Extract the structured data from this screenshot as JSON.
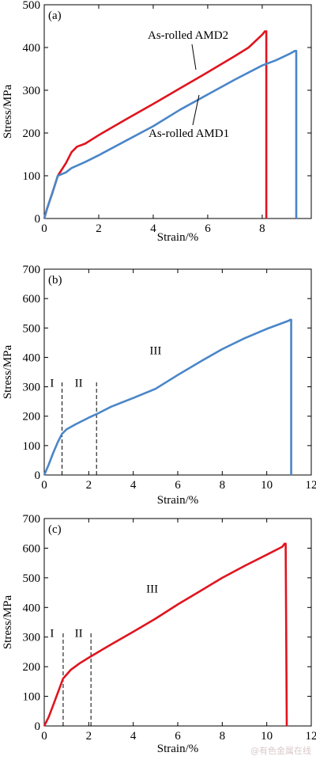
{
  "chart_data": [
    {
      "type": "line",
      "panel_label": "(a)",
      "xlabel": "Strain/%",
      "ylabel": "Stress/MPa",
      "xlim": [
        0,
        9.8
      ],
      "ylim": [
        0,
        500
      ],
      "xticks": [
        0,
        2,
        4,
        6,
        8
      ],
      "yticks": [
        0,
        100,
        200,
        300,
        400,
        500
      ],
      "series": [
        {
          "name": "As-rolled AMD2",
          "color": "#e0141e",
          "points": [
            [
              0,
              0
            ],
            [
              0.1,
              22
            ],
            [
              0.3,
              60
            ],
            [
              0.5,
              100
            ],
            [
              0.8,
              130
            ],
            [
              1.0,
              155
            ],
            [
              1.2,
              168
            ],
            [
              1.5,
              175
            ],
            [
              2,
              195
            ],
            [
              3,
              232
            ],
            [
              4,
              268
            ],
            [
              5,
              305
            ],
            [
              6,
              342
            ],
            [
              7,
              380
            ],
            [
              7.5,
              400
            ],
            [
              8.0,
              430
            ],
            [
              8.1,
              438
            ],
            [
              8.15,
              438
            ],
            [
              8.15,
              0
            ]
          ]
        },
        {
          "name": "As-rolled AMD1",
          "color": "#4a86c8",
          "points": [
            [
              0,
              0
            ],
            [
              0.1,
              22
            ],
            [
              0.3,
              60
            ],
            [
              0.5,
              100
            ],
            [
              0.8,
              108
            ],
            [
              1.0,
              118
            ],
            [
              1.5,
              132
            ],
            [
              2,
              148
            ],
            [
              3,
              182
            ],
            [
              4,
              216
            ],
            [
              5,
              255
            ],
            [
              6,
              290
            ],
            [
              7,
              325
            ],
            [
              8,
              358
            ],
            [
              8.5,
              370
            ],
            [
              9.0,
              385
            ],
            [
              9.2,
              392
            ],
            [
              9.25,
              392
            ],
            [
              9.25,
              0
            ]
          ]
        }
      ]
    },
    {
      "type": "line",
      "panel_label": "(b)",
      "xlabel": "Strain/%",
      "ylabel": "Stress/MPa",
      "xlim": [
        0,
        12
      ],
      "ylim": [
        0,
        700
      ],
      "xticks": [
        0,
        2,
        4,
        6,
        8,
        10,
        12
      ],
      "yticks": [
        0,
        100,
        200,
        300,
        400,
        500,
        600,
        700
      ],
      "stage_lines": [
        0.8,
        2.35
      ],
      "stage_labels": [
        {
          "text": "I",
          "x": 0.35,
          "y": 300
        },
        {
          "text": "II",
          "x": 1.55,
          "y": 300
        },
        {
          "text": "III",
          "x": 5.0,
          "y": 410
        }
      ],
      "series": [
        {
          "name": "",
          "color": "#4a86c8",
          "points": [
            [
              0,
              0
            ],
            [
              0.2,
              35
            ],
            [
              0.4,
              75
            ],
            [
              0.6,
              110
            ],
            [
              0.8,
              140
            ],
            [
              1.0,
              155
            ],
            [
              1.4,
              172
            ],
            [
              2.0,
              195
            ],
            [
              2.35,
              207
            ],
            [
              3,
              232
            ],
            [
              4,
              262
            ],
            [
              5,
              293
            ],
            [
              6,
              340
            ],
            [
              7,
              385
            ],
            [
              8,
              428
            ],
            [
              9,
              465
            ],
            [
              10,
              497
            ],
            [
              11,
              525
            ],
            [
              11.05,
              528
            ],
            [
              11.1,
              528
            ],
            [
              11.1,
              0
            ]
          ]
        }
      ]
    },
    {
      "type": "line",
      "panel_label": "(c)",
      "xlabel": "Strain/%",
      "ylabel": "Stress/MPa",
      "xlim": [
        0,
        12
      ],
      "ylim": [
        0,
        700
      ],
      "xticks": [
        0,
        2,
        4,
        6,
        8,
        10,
        12
      ],
      "yticks": [
        0,
        100,
        200,
        300,
        400,
        500,
        600,
        700
      ],
      "stage_lines": [
        0.85,
        2.1
      ],
      "stage_labels": [
        {
          "text": "I",
          "x": 0.35,
          "y": 300
        },
        {
          "text": "II",
          "x": 1.55,
          "y": 300
        },
        {
          "text": "III",
          "x": 4.85,
          "y": 450
        }
      ],
      "series": [
        {
          "name": "",
          "color": "#e0141e",
          "points": [
            [
              0,
              0
            ],
            [
              0.2,
              30
            ],
            [
              0.4,
              70
            ],
            [
              0.6,
              110
            ],
            [
              0.85,
              160
            ],
            [
              1.2,
              190
            ],
            [
              1.6,
              212
            ],
            [
              2.1,
              235
            ],
            [
              3,
              275
            ],
            [
              4,
              318
            ],
            [
              5,
              362
            ],
            [
              6,
              410
            ],
            [
              7,
              455
            ],
            [
              8,
              500
            ],
            [
              9,
              540
            ],
            [
              10,
              578
            ],
            [
              10.7,
              605
            ],
            [
              10.8,
              615
            ],
            [
              10.85,
              615
            ],
            [
              10.9,
              0
            ]
          ]
        }
      ]
    }
  ],
  "watermark": "@有色金属在线"
}
